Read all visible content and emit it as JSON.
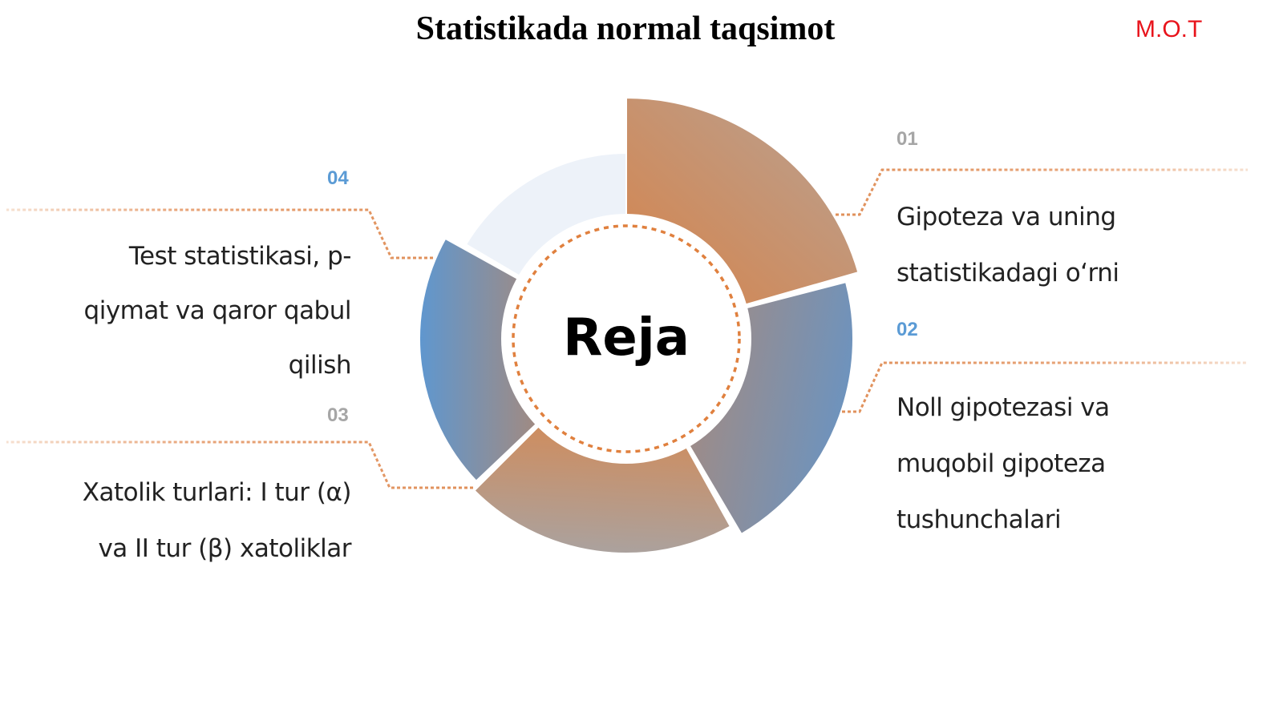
{
  "title": "Statistikada normal taqsimot",
  "logo": "M.O.T",
  "center_label": "Reja",
  "colors": {
    "orange": "#d4844a",
    "blue": "#5e95cf",
    "grey_number": "#a6a6a6",
    "blue_number": "#5b9bd5",
    "light_segment": "#edf2f9",
    "logo": "#e8141c"
  },
  "items": [
    {
      "number": "01",
      "number_color": "#a6a6a6",
      "text": "Gipoteza va uning statistikadagi o‘rni",
      "lines": [
        "Gipoteza va uning",
        "statistikadagi o‘rni"
      ]
    },
    {
      "number": "02",
      "number_color": "#5b9bd5",
      "text": "Noll gipotezasi va muqobil gipoteza tushunchalari",
      "lines": [
        "Noll gipotezasi va",
        "muqobil gipoteza",
        "tushunchalari"
      ]
    },
    {
      "number": "03",
      "number_color": "#a6a6a6",
      "text": "Xatolik turlari: I tur (α) va II tur (β) xatoliklar",
      "lines": [
        "Xatolik turlari: I tur (α)",
        "va II tur (β) xatoliklar"
      ]
    },
    {
      "number": "04",
      "number_color": "#5b9bd5",
      "text": "Test statistikasi, p-qiymat va qaror qabul qilish",
      "lines": [
        "Test statistikasi, p-",
        "qiymat va qaror qabul",
        "qilish"
      ]
    }
  ]
}
